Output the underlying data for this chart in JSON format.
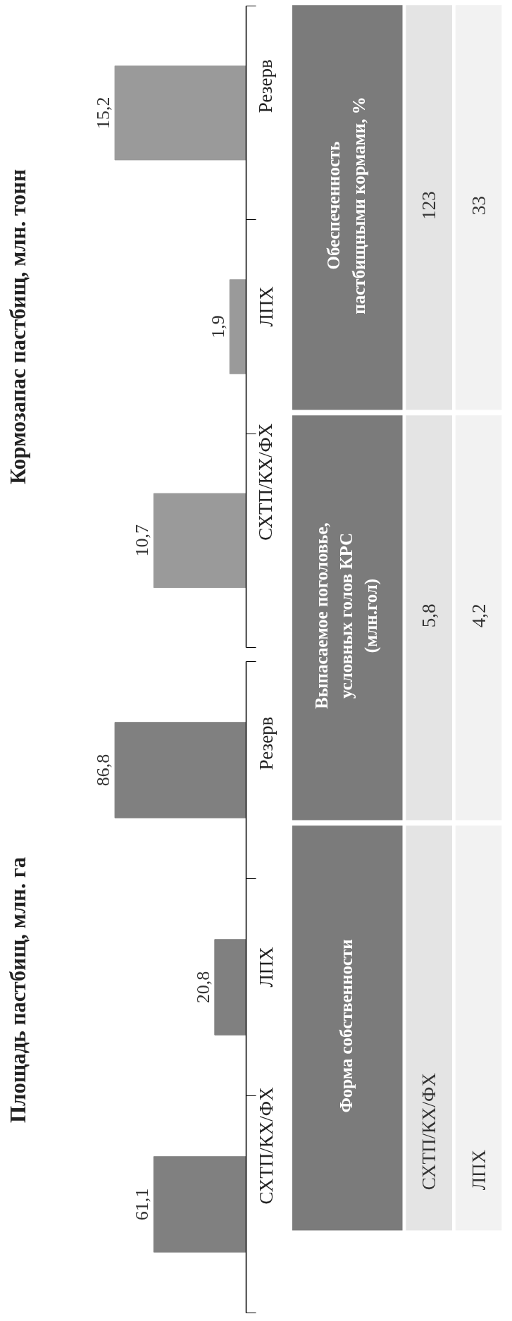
{
  "chart_data": [
    {
      "type": "bar",
      "orientation": "horizontal",
      "title": "Площадь  пастбищ, млн. га",
      "categories": [
        "Резерв",
        "ЛПХ",
        "СХТП/КХ/ФХ"
      ],
      "values": [
        86.8,
        20.8,
        61.1
      ],
      "value_labels": [
        "86,8",
        "20,8",
        "61,1"
      ],
      "color": "#808080"
    },
    {
      "type": "bar",
      "orientation": "horizontal",
      "title": "Кормозапас пастбищ, млн. тонн",
      "categories": [
        "Резерв",
        "ЛПХ",
        "СХТП/КХ/ФХ"
      ],
      "values": [
        15.2,
        1.9,
        10.7
      ],
      "value_labels": [
        "15,2",
        "1,9",
        "10,7"
      ],
      "color": "#9a9a9a"
    },
    {
      "type": "other",
      "ylabel": "Форма собственности",
      "categories": [
        "Выпасаемое поголовье, условных голов КРС (млн.гол)",
        "Обеспеченность пастбищными кормами, %"
      ],
      "y_categories": [
        "СХТП/КХ/ФХ",
        "ЛПХ"
      ],
      "cell_labels": [
        [
          "5,8",
          "123"
        ],
        [
          "4,2",
          "33"
        ]
      ]
    }
  ]
}
